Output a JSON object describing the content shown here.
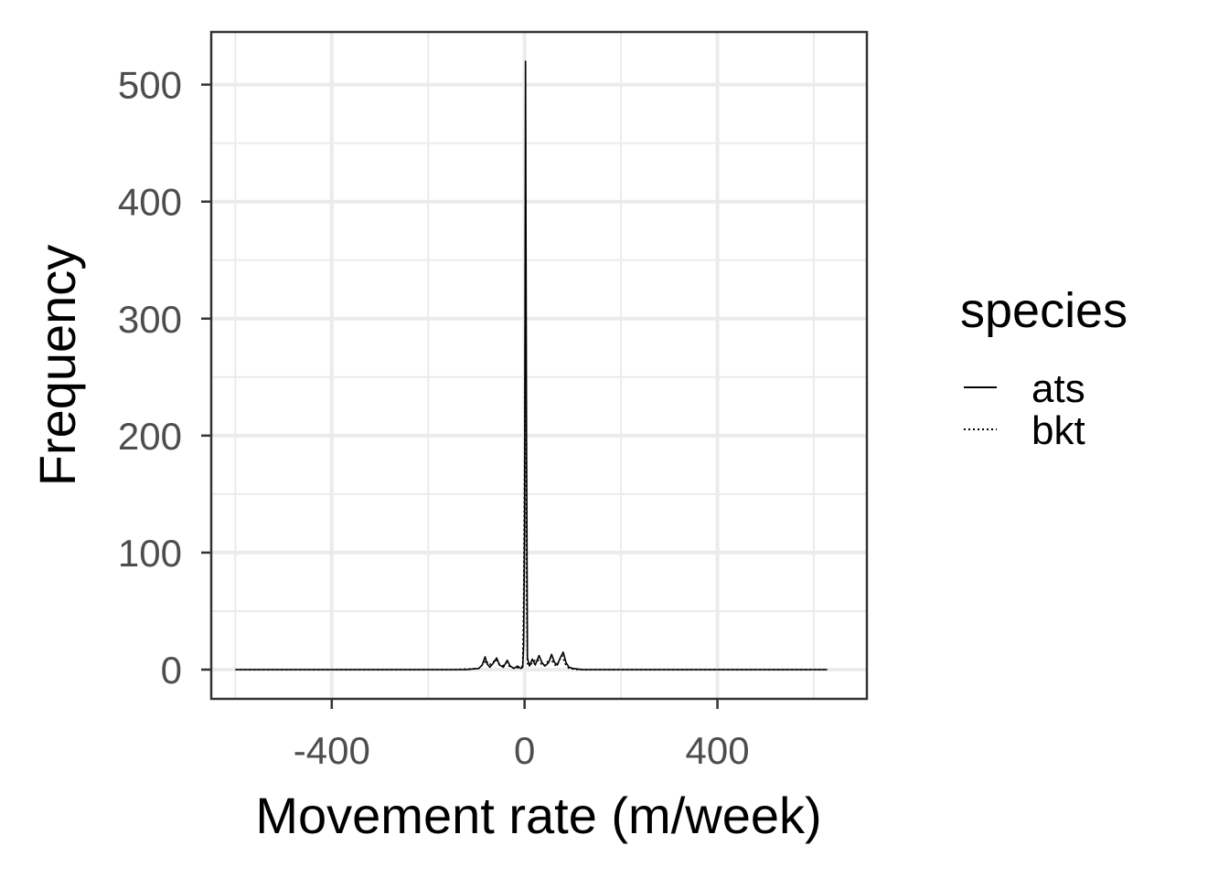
{
  "chart_data": {
    "type": "line",
    "title": "",
    "xlabel": "Movement rate (m/week)",
    "ylabel": "Frequency",
    "xlim": [
      -650,
      710
    ],
    "ylim": [
      -25,
      545
    ],
    "x_ticks": [
      -400,
      0,
      400
    ],
    "x_tick_labels": [
      "-400",
      "0",
      "400"
    ],
    "y_ticks": [
      0,
      100,
      200,
      300,
      400,
      500
    ],
    "y_tick_labels": [
      "0",
      "100",
      "200",
      "300",
      "400",
      "500"
    ],
    "grid": true,
    "legend": {
      "title": "species",
      "position": "right"
    },
    "series": [
      {
        "name": "ats",
        "line_style": "solid",
        "color": "#000000",
        "points": [
          [
            -600,
            0
          ],
          [
            -300,
            0
          ],
          [
            -200,
            0
          ],
          [
            -120,
            0
          ],
          [
            -95,
            1
          ],
          [
            -88,
            4
          ],
          [
            -82,
            11
          ],
          [
            -78,
            5
          ],
          [
            -72,
            2
          ],
          [
            -64,
            6
          ],
          [
            -58,
            10
          ],
          [
            -52,
            4
          ],
          [
            -44,
            2
          ],
          [
            -36,
            8
          ],
          [
            -30,
            3
          ],
          [
            -22,
            1
          ],
          [
            -15,
            3
          ],
          [
            -8,
            1
          ],
          [
            -4,
            2
          ],
          [
            -2,
            20
          ],
          [
            0,
            120
          ],
          [
            2,
            520
          ],
          [
            4,
            200
          ],
          [
            6,
            10
          ],
          [
            10,
            3
          ],
          [
            16,
            9
          ],
          [
            22,
            4
          ],
          [
            30,
            12
          ],
          [
            36,
            6
          ],
          [
            42,
            3
          ],
          [
            50,
            6
          ],
          [
            56,
            13
          ],
          [
            62,
            6
          ],
          [
            68,
            4
          ],
          [
            74,
            10
          ],
          [
            80,
            15
          ],
          [
            86,
            6
          ],
          [
            92,
            2
          ],
          [
            100,
            1
          ],
          [
            120,
            0
          ],
          [
            200,
            0
          ],
          [
            400,
            0
          ],
          [
            628,
            0
          ]
        ]
      },
      {
        "name": "bkt",
        "line_style": "dotted",
        "color": "#000000",
        "points": [
          [
            -600,
            0
          ],
          [
            -300,
            0
          ],
          [
            -150,
            0
          ],
          [
            -95,
            1
          ],
          [
            -85,
            5
          ],
          [
            -80,
            8
          ],
          [
            -74,
            4
          ],
          [
            -66,
            6
          ],
          [
            -60,
            9
          ],
          [
            -54,
            5
          ],
          [
            -46,
            3
          ],
          [
            -38,
            6
          ],
          [
            -30,
            2
          ],
          [
            -20,
            1
          ],
          [
            -10,
            2
          ],
          [
            -4,
            3
          ],
          [
            -2,
            60
          ],
          [
            0,
            180
          ],
          [
            2,
            355
          ],
          [
            4,
            60
          ],
          [
            6,
            5
          ],
          [
            12,
            4
          ],
          [
            18,
            7
          ],
          [
            26,
            9
          ],
          [
            34,
            5
          ],
          [
            40,
            3
          ],
          [
            48,
            7
          ],
          [
            54,
            10
          ],
          [
            60,
            5
          ],
          [
            66,
            3
          ],
          [
            72,
            8
          ],
          [
            78,
            12
          ],
          [
            84,
            5
          ],
          [
            92,
            1
          ],
          [
            110,
            0
          ],
          [
            200,
            0
          ],
          [
            400,
            0
          ],
          [
            628,
            0
          ]
        ]
      }
    ]
  }
}
